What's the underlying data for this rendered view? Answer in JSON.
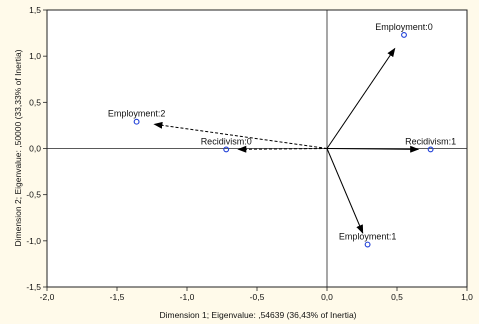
{
  "chart_data": {
    "type": "scatter",
    "xlabel": "Dimension 1; Eigenvalue: ,54639 (36,43% of Inertia)",
    "ylabel": "Dimension 2; Eigenvalue: ,50000 (33,33% of Inertia)",
    "xlim": [
      -2.0,
      1.0
    ],
    "ylim": [
      -1.5,
      1.5
    ],
    "xticks": [
      -2.0,
      -1.5,
      -1.0,
      -0.5,
      0.0,
      0.5,
      1.0
    ],
    "yticks": [
      -1.5,
      -1.0,
      -0.5,
      0.0,
      0.5,
      1.0,
      1.5
    ],
    "xtick_labels": [
      "-2,0",
      "-1,5",
      "-1,0",
      "-0,5",
      "0,0",
      "0,5",
      "1,0"
    ],
    "ytick_labels": [
      "-1,5",
      "-1,0",
      "-0,5",
      "0,0",
      "0,5",
      "1,0",
      "1,5"
    ],
    "grid": false,
    "marker_color": "#1f3fd8",
    "points": [
      {
        "label": "Employment:0",
        "x": 0.55,
        "y": 1.23,
        "arrow": "solid"
      },
      {
        "label": "Employment:1",
        "x": 0.29,
        "y": -1.04,
        "arrow": "solid"
      },
      {
        "label": "Employment:2",
        "x": -1.36,
        "y": 0.29,
        "arrow": "dashed"
      },
      {
        "label": "Recidivism:0",
        "x": -0.72,
        "y": -0.01,
        "arrow": "dashed"
      },
      {
        "label": "Recidivism:1",
        "x": 0.74,
        "y": -0.01,
        "arrow": "solid"
      }
    ]
  }
}
